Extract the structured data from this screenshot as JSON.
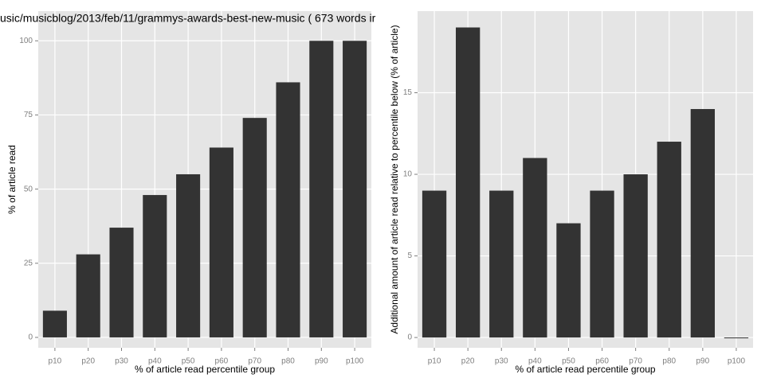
{
  "chart_data": [
    {
      "type": "bar",
      "title": "usic/musicblog/2013/feb/11/grammys-awards-best-new-music ( 673 words ir",
      "x_label": "% of article read percentile group",
      "y_label": "% of article read",
      "categories": [
        "p10",
        "p20",
        "p30",
        "p40",
        "p50",
        "p60",
        "p70",
        "p80",
        "p90",
        "p100"
      ],
      "values": [
        9,
        28,
        37,
        48,
        55,
        64,
        74,
        86,
        100,
        100
      ],
      "color": "#333333",
      "ylim": [
        -3.5,
        110
      ],
      "yticks": [
        0,
        25,
        50,
        75,
        100
      ],
      "grid": true
    },
    {
      "type": "bar",
      "x_label": "% of article read percentile group",
      "y_label": "Additional amount of article read relative to percentile below (% of article)",
      "categories": [
        "p10",
        "p20",
        "p30",
        "p40",
        "p50",
        "p60",
        "p70",
        "p80",
        "p90",
        "p100"
      ],
      "values": [
        9,
        19,
        9,
        11,
        7,
        9,
        10,
        12,
        14,
        0
      ],
      "color": "#333333",
      "ylim": [
        -0.63,
        20
      ],
      "yticks": [
        0,
        5,
        10,
        15
      ],
      "grid": true
    }
  ]
}
